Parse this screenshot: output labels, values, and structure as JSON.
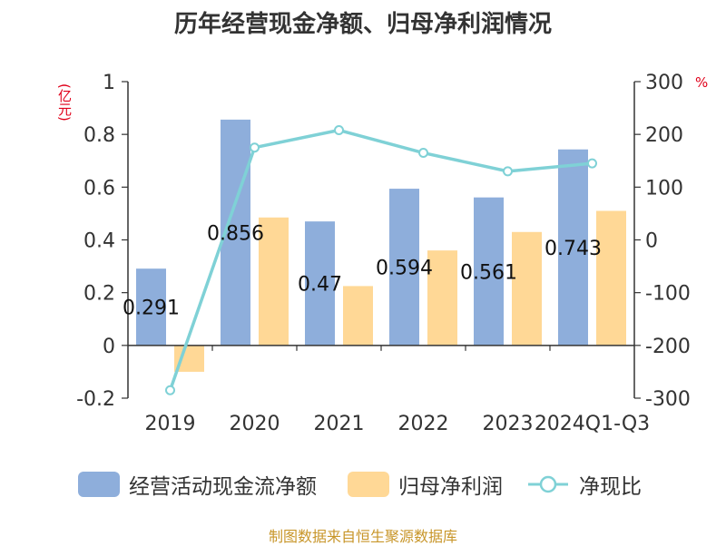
{
  "title": "历年经营现金净额、归母净利润情况",
  "source": "制图数据来自恒生聚源数据库",
  "chart_data": {
    "type": "bar",
    "categories": [
      "2019",
      "2020",
      "2021",
      "2022",
      "2023",
      "2024Q1-Q3"
    ],
    "ylabel": "(亿元)",
    "y2label": "%",
    "ylim": [
      -0.2,
      1
    ],
    "y2lim": [
      -300,
      300
    ],
    "yticks": [
      -0.2,
      0,
      0.2,
      0.4,
      0.6,
      0.8,
      1
    ],
    "y2ticks": [
      -300,
      -200,
      -100,
      0,
      100,
      200,
      300
    ],
    "series": [
      {
        "name": "经营活动现金流净额",
        "type": "bar",
        "axis": "left",
        "color": "#8eaedb",
        "values": [
          0.291,
          0.856,
          0.47,
          0.594,
          0.561,
          0.743
        ],
        "labels": [
          "0.291",
          "0.856",
          "0.47",
          "0.594",
          "0.561",
          "0.743"
        ]
      },
      {
        "name": "归母净利润",
        "type": "bar",
        "axis": "left",
        "color": "#ffd896",
        "values": [
          -0.1,
          0.485,
          0.225,
          0.36,
          0.43,
          0.51
        ]
      },
      {
        "name": "净现比",
        "type": "line",
        "axis": "right",
        "color": "#7fd1d6",
        "values": [
          -285,
          175,
          208,
          165,
          130,
          145
        ]
      }
    ],
    "grid": false,
    "legend_position": "bottom"
  }
}
